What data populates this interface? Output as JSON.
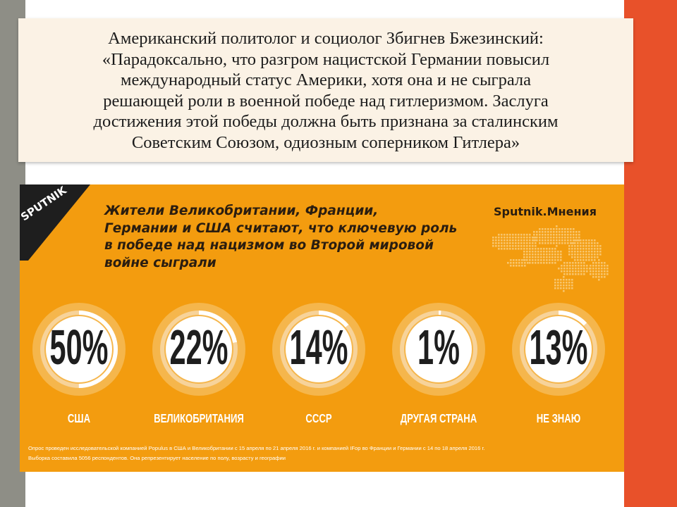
{
  "quote": {
    "lines": [
      "Американский политолог и социолог Збигнев Бжезинский:",
      "«Парадоксально, что разгром нацистской Германии повысил",
      "международный статус Америки, хотя она и не сыграла",
      "решающей роли в военной победе над гитлеризмом. Заслуга",
      "достижения этой победы должна быть признана за сталинским",
      "Советским Союзом, одиозным соперником Гитлера»"
    ]
  },
  "infographic": {
    "logo_text": "SPUTNIK",
    "brand": "Sputnik.Мнения",
    "headline_lines": [
      "Жители Великобритании, Франции,",
      "Германии и США считают, что ключевую роль",
      "в победе над нацизмом во Второй мировой",
      "войне сыграли"
    ],
    "footnote_lines": [
      "Опрос проведен исследовательской компанией Populus в США и Великобритании с 15 апреля по 21 апреля 2016 г. и компанией IFop во Франции и Германии с 14 по 18 апреля 2016 г.",
      "Выборка составила 5056 респондентов. Она репрезентирует население по полу, возрасту и географии"
    ],
    "colors": {
      "background": "#f39c0f",
      "ring_track": "#f7d39a",
      "ring_fill": "#ffffff",
      "headline": "#2a1d10"
    }
  },
  "chart_data": {
    "type": "pie",
    "title": "",
    "categories": [
      "США",
      "ВЕЛИКОБРИТАНИЯ",
      "СССР",
      "ДРУГАЯ СТРАНА",
      "НЕ ЗНАЮ"
    ],
    "values": [
      50,
      22,
      14,
      1,
      13
    ],
    "value_labels": [
      "50%",
      "22%",
      "14%",
      "1%",
      "13%"
    ],
    "unit": "%"
  }
}
